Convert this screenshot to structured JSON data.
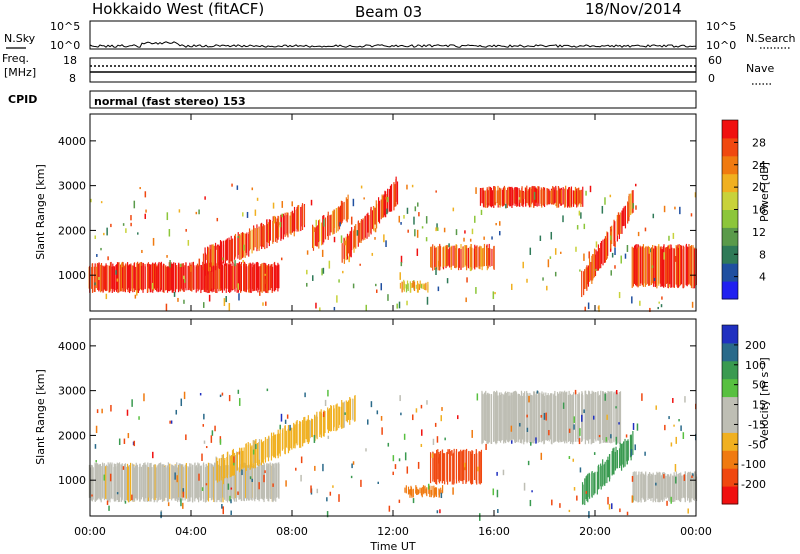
{
  "header": {
    "station": "Hokkaido West (fitACF)",
    "beam": "Beam 03",
    "date": "18/Nov/2014"
  },
  "top_panel": {
    "noise_sky_label": "N.Sky",
    "noise_search_label": "N.Search",
    "noise_left_ticks": [
      "10^5",
      "10^0"
    ],
    "noise_right_ticks": [
      "10^5",
      "10^0"
    ],
    "freq_label_line1": "Freq.",
    "freq_label_line2": "[MHz]",
    "freq_ticks": [
      "18",
      "8"
    ],
    "nave_label": "Nave",
    "nave_ticks": [
      "60",
      "0"
    ],
    "cpid_label": "CPID",
    "cpid_text": "normal (fast stereo) 153"
  },
  "chart_data": [
    {
      "type": "heatmap",
      "name": "power",
      "ylabel": "Slant Range [km]",
      "xlabel": "",
      "yticks": [
        "4000",
        "3000",
        "2000",
        "1000"
      ],
      "ylim": [
        200,
        4600
      ],
      "colorbar_label": "Power [dB]",
      "colorbar_ticks": [
        "28",
        "24",
        "20",
        "16",
        "12",
        "8",
        "4"
      ],
      "colorbar_colors": [
        "#2020f0",
        "#1f4fa0",
        "#2f7a58",
        "#5a9a4a",
        "#8cc63a",
        "#c8d23a",
        "#f0b020",
        "#f07a10",
        "#f04810",
        "#f01010"
      ],
      "features": [
        {
          "kind": "band",
          "x": [
            0.0,
            7.5
          ],
          "y": [
            600,
            1300
          ],
          "value": 30
        },
        {
          "kind": "streak",
          "x": [
            4.5,
            8.5
          ],
          "y": [
            1300,
            2300
          ],
          "value": 28
        },
        {
          "kind": "streak",
          "x": [
            8.8,
            10.2
          ],
          "y": [
            1800,
            2500
          ],
          "value": 26
        },
        {
          "kind": "streak",
          "x": [
            10.0,
            12.2
          ],
          "y": [
            1500,
            2900
          ],
          "value": 27
        },
        {
          "kind": "blob",
          "x": [
            13.5,
            16.0
          ],
          "y": [
            1100,
            1700
          ],
          "value": 26
        },
        {
          "kind": "blob",
          "x": [
            12.3,
            13.4
          ],
          "y": [
            600,
            900
          ],
          "value": 20
        },
        {
          "kind": "band",
          "x": [
            15.5,
            19.5
          ],
          "y": [
            2500,
            3000
          ],
          "value": 29
        },
        {
          "kind": "streak",
          "x": [
            19.5,
            21.5
          ],
          "y": [
            800,
            2600
          ],
          "value": 28
        },
        {
          "kind": "band",
          "x": [
            21.5,
            24.0
          ],
          "y": [
            700,
            1700
          ],
          "value": 27
        }
      ]
    },
    {
      "type": "heatmap",
      "name": "velocity",
      "ylabel": "Slant Range [km]",
      "xlabel": "Time UT",
      "xticks": [
        "00:00",
        "04:00",
        "08:00",
        "12:00",
        "16:00",
        "20:00",
        "00:00"
      ],
      "yticks": [
        "4000",
        "3000",
        "2000",
        "1000"
      ],
      "ylim": [
        200,
        4600
      ],
      "colorbar_label": "Velocity [m s⁻¹]",
      "colorbar_ticks": [
        "200",
        "100",
        "50",
        "15",
        "-15",
        "-50",
        "-100",
        "-200"
      ],
      "colorbar_colors": [
        "#f01010",
        "#f04810",
        "#f07a10",
        "#f0b020",
        "#bebeb4",
        "#bebeb4",
        "#58c040",
        "#3a9a50",
        "#2a6a8a",
        "#2030c0"
      ],
      "features": [
        {
          "kind": "band",
          "x": [
            0.0,
            7.5
          ],
          "y": [
            500,
            1400
          ],
          "value": -10
        },
        {
          "kind": "streak",
          "x": [
            5.0,
            10.5
          ],
          "y": [
            1200,
            2600
          ],
          "value": -20
        },
        {
          "kind": "blob",
          "x": [
            13.5,
            15.5
          ],
          "y": [
            900,
            1700
          ],
          "value": -120
        },
        {
          "kind": "blob",
          "x": [
            12.5,
            14.0
          ],
          "y": [
            600,
            900
          ],
          "value": -60
        },
        {
          "kind": "band",
          "x": [
            15.5,
            21.0
          ],
          "y": [
            1800,
            3000
          ],
          "value": 5
        },
        {
          "kind": "streak",
          "x": [
            19.5,
            21.5
          ],
          "y": [
            700,
            1800
          ],
          "value": 60
        },
        {
          "kind": "band",
          "x": [
            21.5,
            24.0
          ],
          "y": [
            500,
            1200
          ],
          "value": 0
        }
      ]
    }
  ]
}
